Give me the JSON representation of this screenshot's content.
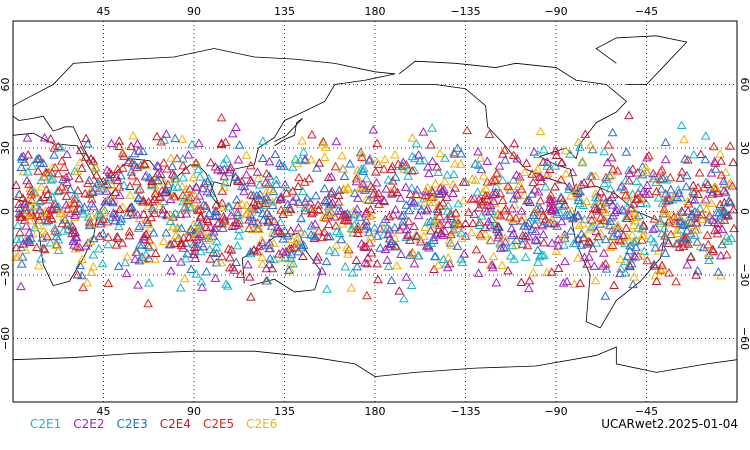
{
  "map": {
    "type": "scatter",
    "projection": "equirectangular",
    "lon_range": [
      0,
      360
    ],
    "lat_range": [
      -90,
      90
    ],
    "grid": true,
    "x_ticks_top": [
      "45",
      "90",
      "135",
      "180",
      "−135",
      "−90",
      "−45"
    ],
    "x_ticks_bottom": [
      "45",
      "90",
      "135",
      "180",
      "−135",
      "−90",
      "−45"
    ],
    "x_tick_lons": [
      45,
      90,
      135,
      180,
      225,
      270,
      315
    ],
    "y_ticks": [
      "60",
      "30",
      "0",
      "−30",
      "−60"
    ],
    "y_tick_lats": [
      60,
      30,
      0,
      -30,
      -60
    ],
    "marker": "open-triangle",
    "occultation_lat_band": [
      -48,
      48
    ]
  },
  "legend": {
    "series": [
      {
        "name": "C2E1",
        "color": "#17b6c7"
      },
      {
        "name": "C2E2",
        "color": "#a21fc9"
      },
      {
        "name": "C2E3",
        "color": "#1f6fd6"
      },
      {
        "name": "C2E4",
        "color": "#c2182f"
      },
      {
        "name": "C2E5",
        "color": "#e3231c"
      },
      {
        "name": "C2E6",
        "color": "#f2b10d"
      }
    ]
  },
  "footer": {
    "label": "UCARwet2.2025-01-04"
  }
}
